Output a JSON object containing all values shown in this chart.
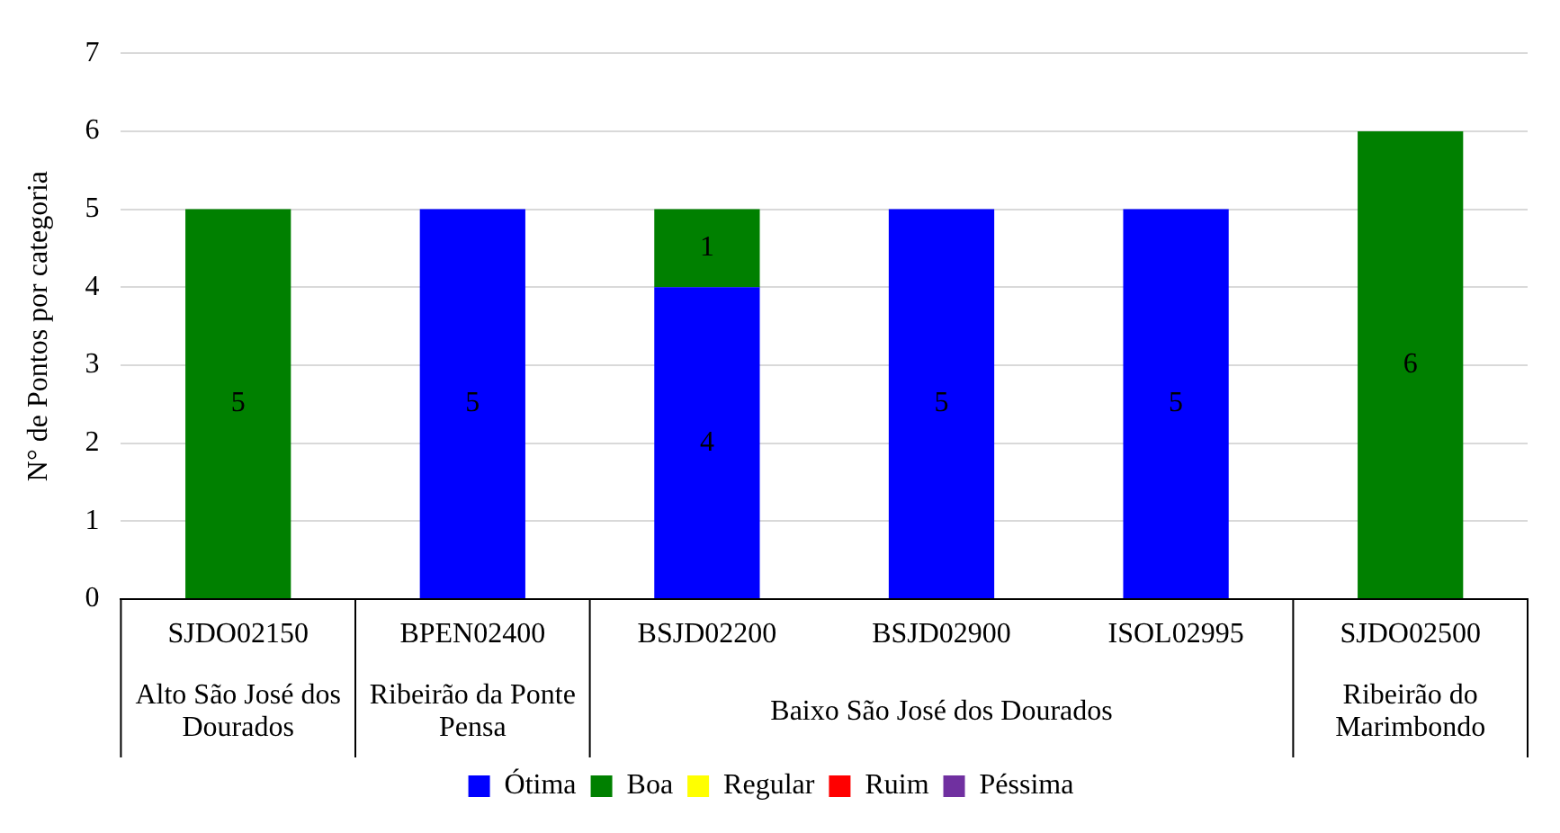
{
  "chart_data": {
    "type": "bar",
    "stacked": true,
    "ylabel": "N° de Pontos por categoria",
    "categories": [
      "SJDO02150",
      "BPEN02400",
      "BSJD02200",
      "BSJD02900",
      "ISOL02995",
      "SJDO02500"
    ],
    "series": [
      {
        "name": "Ótima",
        "color": "#0000ff",
        "values": [
          null,
          5,
          4,
          5,
          5,
          null
        ]
      },
      {
        "name": "Boa",
        "color": "#008000",
        "values": [
          5,
          null,
          1,
          null,
          null,
          6
        ]
      },
      {
        "name": "Regular",
        "color": "#ffff00",
        "values": [
          null,
          null,
          null,
          null,
          null,
          null
        ]
      },
      {
        "name": "Ruim",
        "color": "#ff0000",
        "values": [
          null,
          null,
          null,
          null,
          null,
          null
        ]
      },
      {
        "name": "Péssima",
        "color": "#7030a0",
        "values": [
          null,
          null,
          null,
          null,
          null,
          null
        ]
      }
    ],
    "annotations": [
      "Alto São José dos Dourados",
      "Ribeirão da Ponte Pensa",
      "Baixo São José dos Dourados",
      "Ribeirão do Marimbondo"
    ],
    "ylim": [
      0,
      7
    ],
    "yticks": [
      0,
      1,
      2,
      3,
      4,
      5,
      6,
      7
    ],
    "grid": "y",
    "legend": "bottom",
    "data_labels": true
  }
}
